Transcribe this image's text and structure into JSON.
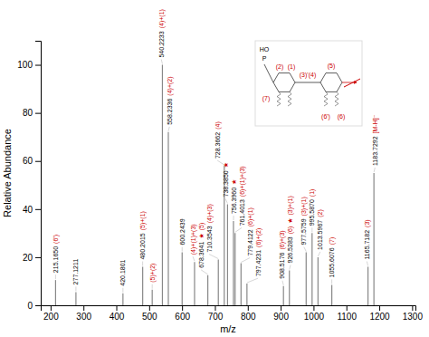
{
  "chart_data": {
    "type": "stem",
    "x_label": "m/z",
    "y_label": "Relative Abundance",
    "color": "#888888",
    "grid": false,
    "xlim": [
      170,
      1310
    ],
    "ylim": [
      0,
      110
    ],
    "xticks": [
      200,
      300,
      400,
      500,
      600,
      700,
      800,
      900,
      1000,
      1100,
      1200,
      1300
    ],
    "yticks": [
      0,
      20,
      40,
      60,
      80,
      100
    ],
    "x": [
      215.165,
      277.1211,
      420.1801,
      480.2015,
      509.2,
      540.2233,
      558.2336,
      600.2439,
      638.0,
      678.3641,
      710.3543,
      728.3662,
      738.385,
      756.396,
      761.4013,
      779.4122,
      797.4231,
      908.5176,
      926.5283,
      977.5759,
      995.587,
      1013.5967,
      1055.6076,
      1165.7182,
      1183.7292
    ],
    "values": [
      10.5,
      5.5,
      5.0,
      16.0,
      6.5,
      100.0,
      72.0,
      22.0,
      18.0,
      12.5,
      19.0,
      58.0,
      42.0,
      35.0,
      30.0,
      17.5,
      9.0,
      8.0,
      14.5,
      22.0,
      30.0,
      20.0,
      8.5,
      16.0,
      55.0
    ],
    "annotations": [
      {
        "x": 215.165,
        "texts": [
          {
            "text": "215.1650",
            "color": "black"
          },
          {
            "text": "(6')",
            "color": "#cc0000"
          }
        ]
      },
      {
        "x": 277.1211,
        "texts": [
          {
            "text": "277.1211",
            "color": "black"
          }
        ]
      },
      {
        "x": 420.1801,
        "texts": [
          {
            "text": "420.1801",
            "color": "black"
          }
        ]
      },
      {
        "x": 480.2015,
        "texts": [
          {
            "text": "480.2015",
            "color": "black"
          },
          {
            "text": "(5)+(1)",
            "color": "#cc0000"
          }
        ]
      },
      {
        "x": 509.2,
        "texts": [
          {
            "text": "(5)+(2)",
            "color": "#cc0000"
          }
        ]
      },
      {
        "x": 540.2233,
        "texts": [
          {
            "text": "540.2233",
            "color": "black"
          },
          {
            "text": "(4)+(1)",
            "color": "#cc0000"
          }
        ]
      },
      {
        "x": 558.2336,
        "texts": [
          {
            "text": "558.2336",
            "color": "black"
          },
          {
            "text": "(4)+(2)",
            "color": "#cc0000"
          }
        ]
      },
      {
        "x": 600.2439,
        "texts": [
          {
            "text": "600.2439",
            "color": "black"
          }
        ]
      },
      {
        "x": 638.0,
        "texts": [
          {
            "text": "(4)+(1)+(3)",
            "color": "#cc0000"
          }
        ]
      },
      {
        "x": 678.3641,
        "texts": [
          {
            "text": "678.3641",
            "color": "black"
          },
          {
            "text": "★",
            "color": "#cc0000"
          },
          {
            "text": "(5)",
            "color": "#cc0000"
          }
        ]
      },
      {
        "x": 710.3543,
        "texts": [
          {
            "text": "710.3543",
            "color": "black"
          },
          {
            "text": "(4)+(3)",
            "color": "#cc0000"
          }
        ]
      },
      {
        "x": 728.3662,
        "texts": [
          {
            "text": "728.3662",
            "color": "black"
          },
          {
            "text": "(4)",
            "color": "#cc0000"
          }
        ]
      },
      {
        "x": 738.385,
        "texts": [
          {
            "text": "738.3850",
            "color": "black"
          },
          {
            "text": "★",
            "color": "#cc0000"
          }
        ]
      },
      {
        "x": 756.396,
        "texts": [
          {
            "text": "756.3960",
            "color": "black"
          },
          {
            "text": "★",
            "color": "#cc0000"
          }
        ]
      },
      {
        "x": 761.4013,
        "texts": [
          {
            "text": "761.4013",
            "color": "black"
          },
          {
            "text": "(6)+(1)+(3)",
            "color": "#cc0000"
          }
        ]
      },
      {
        "x": 779.4122,
        "texts": [
          {
            "text": "779.4122",
            "color": "black"
          },
          {
            "text": "(6)+(1)",
            "color": "#cc0000"
          }
        ]
      },
      {
        "x": 797.4231,
        "texts": [
          {
            "text": "797.4231",
            "color": "black"
          },
          {
            "text": "(6)+(2)",
            "color": "#cc0000"
          }
        ]
      },
      {
        "x": 908.5176,
        "texts": [
          {
            "text": "908.5176",
            "color": "black"
          },
          {
            "text": "(6)+(3)",
            "color": "#cc0000"
          }
        ]
      },
      {
        "x": 926.5283,
        "texts": [
          {
            "text": "926.5283",
            "color": "black"
          },
          {
            "text": "(6)",
            "color": "#cc0000"
          },
          {
            "text": "★",
            "color": "#cc0000"
          },
          {
            "text": "(3)+(1)",
            "color": "#cc0000"
          }
        ]
      },
      {
        "x": 977.5759,
        "texts": [
          {
            "text": "977.5759",
            "color": "black"
          },
          {
            "text": "(3)+(1)",
            "color": "#cc0000"
          }
        ]
      },
      {
        "x": 995.587,
        "texts": [
          {
            "text": "995.5870",
            "color": "black"
          },
          {
            "text": "(1)",
            "color": "#cc0000"
          }
        ]
      },
      {
        "x": 1013.5967,
        "texts": [
          {
            "text": "1013.5967",
            "color": "black"
          },
          {
            "text": "(2)",
            "color": "#cc0000"
          }
        ]
      },
      {
        "x": 1055.6076,
        "texts": [
          {
            "text": "1055.6076",
            "color": "black"
          },
          {
            "text": "(7)",
            "color": "#cc0000"
          }
        ]
      },
      {
        "x": 1165.7182,
        "texts": [
          {
            "text": "1165.7182",
            "color": "black"
          },
          {
            "text": "(3)",
            "color": "#cc0000"
          }
        ]
      },
      {
        "x": 1183.7292,
        "texts": [
          {
            "text": "1183.7292",
            "color": "black"
          },
          {
            "text": "[M-H]⁻",
            "color": "#cc0000"
          }
        ]
      },
      {
        "text": "HO",
        "color": "black"
      },
      {
        "text": "P",
        "color": "black"
      },
      {
        "text": "(2)",
        "color": "#cc0000"
      },
      {
        "text": "(1)",
        "color": "#cc0000"
      },
      {
        "text": "(7)",
        "color": "#cc0000"
      },
      {
        "text": "(5)",
        "color": "#cc0000"
      },
      {
        "text": "(3)'(4)",
        "color": "#cc0000"
      },
      {
        "text": "(6')",
        "color": "#cc0000"
      },
      {
        "text": "(6)",
        "color": "#cc0000"
      }
    ]
  }
}
